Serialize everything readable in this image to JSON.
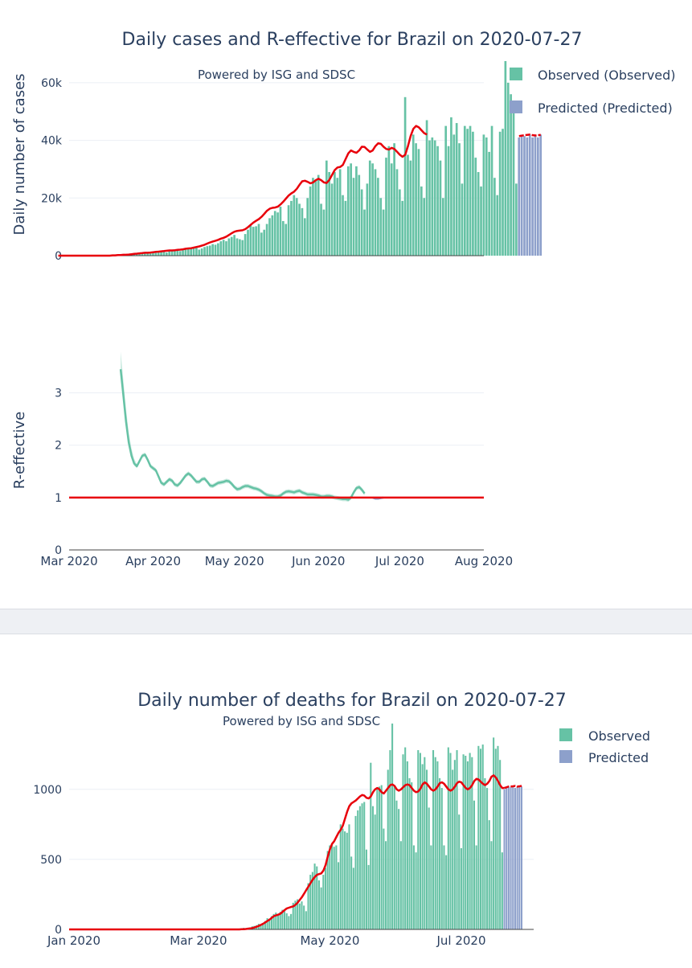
{
  "colors": {
    "observed": "#66c2a5",
    "predicted": "#8da0cb",
    "trend": "#e8000b",
    "reff": "#66c2a5",
    "grid": "#ebeff5"
  },
  "chart_data": [
    {
      "id": "cases",
      "type": "bar",
      "title": "Daily cases and R-effective for Brazil on 2020-07-27",
      "annotation": "Powered by ISG and SDSC",
      "ylabel": "Daily number of cases",
      "ylim": [
        0,
        70000
      ],
      "yticks": [
        0,
        20000,
        40000,
        60000
      ],
      "ytick_labels": [
        "0",
        "20k",
        "40k",
        "60k"
      ],
      "legend": [
        {
          "name": "Observed (Observed)",
          "color": "#66c2a5"
        },
        {
          "name": "Predicted (Predicted)",
          "color": "#8da0cb"
        }
      ],
      "start_date": "2020-02-26",
      "observed": [
        1,
        0,
        0,
        0,
        0,
        1,
        1,
        3,
        5,
        0,
        5,
        0,
        12,
        6,
        13,
        6,
        20,
        30,
        45,
        60,
        70,
        80,
        110,
        140,
        240,
        280,
        340,
        430,
        480,
        500,
        600,
        700,
        750,
        800,
        900,
        1000,
        1100,
        1200,
        1300,
        1500,
        1100,
        1700,
        2000,
        1800,
        2100,
        1600,
        1900,
        2200,
        2500,
        2800,
        2700,
        3000,
        2100,
        2500,
        3000,
        3300,
        3500,
        4000,
        3800,
        4300,
        5000,
        5500,
        5000,
        6000,
        6500,
        7200,
        6000,
        5700,
        5400,
        7500,
        9000,
        10500,
        10000,
        10200,
        11000,
        8000,
        9000,
        11000,
        13000,
        14000,
        15500,
        15000,
        17000,
        12000,
        11000,
        17500,
        19000,
        21000,
        20000,
        18000,
        16500,
        13000,
        20000,
        24000,
        27000,
        26000,
        28000,
        18000,
        16000,
        33000,
        29000,
        25000,
        29000,
        27000,
        30000,
        21000,
        19000,
        31000,
        32000,
        27000,
        31000,
        28000,
        23000,
        16000,
        25000,
        33000,
        32000,
        30000,
        27000,
        20000,
        16000,
        34000,
        38000,
        32000,
        39000,
        30000,
        23000,
        19000,
        55000,
        35000,
        33000,
        42000,
        39000,
        37000,
        24000,
        20000,
        47000,
        40000,
        41000,
        40000,
        38000,
        33000,
        20000,
        45000,
        38000,
        48000,
        42000,
        46000,
        39000,
        25000,
        45000,
        44000,
        45000,
        43000,
        34000,
        29000,
        24000,
        42000,
        41000,
        36000,
        45000,
        27000,
        21000,
        43000,
        44000,
        67500,
        60000,
        56000,
        52000,
        25000
      ],
      "predicted": [
        41000,
        42000,
        41500,
        41000,
        42000,
        41000,
        41500,
        41000,
        42000
      ],
      "trend": [
        0,
        0,
        0,
        0,
        0,
        0,
        0,
        0,
        0,
        0,
        0,
        0,
        0,
        0,
        0,
        0,
        0,
        0,
        0,
        0,
        100,
        100,
        200,
        200,
        300,
        300,
        400,
        500,
        600,
        700,
        800,
        900,
        1000,
        1000,
        1100,
        1200,
        1300,
        1400,
        1500,
        1600,
        1700,
        1800,
        1800,
        1900,
        2000,
        2100,
        2200,
        2400,
        2500,
        2600,
        2800,
        3000,
        3200,
        3500,
        3800,
        4200,
        4600,
        4900,
        5200,
        5500,
        5900,
        6200,
        6600,
        7200,
        7800,
        8300,
        8600,
        8700,
        8800,
        9200,
        9900,
        10700,
        11500,
        12100,
        12700,
        13500,
        14500,
        15600,
        16300,
        16600,
        16700,
        17000,
        17800,
        18700,
        19800,
        20900,
        21600,
        22200,
        23200,
        24600,
        25800,
        26000,
        25600,
        25100,
        25400,
        26200,
        26700,
        26200,
        25400,
        25200,
        26300,
        28000,
        29700,
        30600,
        30800,
        31500,
        33500,
        35500,
        36500,
        36000,
        35700,
        36500,
        37800,
        37700,
        36800,
        36000,
        36500,
        38000,
        39000,
        38800,
        37800,
        37000,
        36800,
        37400,
        37000,
        36000,
        35000,
        34300,
        35000,
        38000,
        41500,
        44000,
        45000,
        44500,
        43500,
        42500,
        42000
      ],
      "trend_predicted": [
        41500,
        41600,
        41800,
        41900,
        42000,
        41800,
        41700,
        41800,
        41900
      ]
    },
    {
      "id": "reff",
      "type": "line",
      "ylabel": "R-effective",
      "ylim": [
        0,
        3.9
      ],
      "yticks": [
        0,
        1,
        2,
        3
      ],
      "ytick_labels": [
        "0",
        "1",
        "2",
        "3"
      ],
      "x_ticks": [
        "Mar 2020",
        "Apr 2020",
        "May 2020",
        "Jun 2020",
        "Jul 2020",
        "Aug 2020"
      ],
      "start_date": "2020-03-20",
      "values": [
        3.45,
        2.95,
        2.45,
        2.05,
        1.8,
        1.65,
        1.6,
        1.7,
        1.8,
        1.82,
        1.72,
        1.6,
        1.56,
        1.52,
        1.4,
        1.28,
        1.25,
        1.3,
        1.35,
        1.32,
        1.25,
        1.23,
        1.28,
        1.35,
        1.42,
        1.46,
        1.42,
        1.36,
        1.3,
        1.3,
        1.35,
        1.36,
        1.3,
        1.23,
        1.22,
        1.25,
        1.28,
        1.29,
        1.3,
        1.32,
        1.31,
        1.26,
        1.2,
        1.16,
        1.17,
        1.2,
        1.22,
        1.22,
        1.2,
        1.18,
        1.17,
        1.15,
        1.12,
        1.08,
        1.05,
        1.04,
        1.03,
        1.02,
        1.02,
        1.04,
        1.08,
        1.11,
        1.12,
        1.11,
        1.1,
        1.12,
        1.13,
        1.1,
        1.08,
        1.06,
        1.06,
        1.06,
        1.05,
        1.04,
        1.02,
        1.02,
        1.03,
        1.03,
        1.02,
        1.0,
        0.99,
        0.98,
        0.97,
        0.97,
        0.96,
        1.0,
        1.1,
        1.18,
        1.2,
        1.15,
        1.08
      ],
      "predicted": [
        1.0,
        0.98,
        0.98,
        0.99,
        1.0
      ],
      "reference_line": 1
    },
    {
      "id": "deaths",
      "type": "bar",
      "title": "Daily number of deaths for Brazil on 2020-07-27",
      "annotation": "Powered by ISG and SDSC",
      "ylim": [
        0,
        1550
      ],
      "yticks": [
        0,
        500,
        1000
      ],
      "ytick_labels": [
        "0",
        "500",
        "1000"
      ],
      "x_ticks": [
        "Jan 2020",
        "Mar 2020",
        "May 2020",
        "Jul 2020"
      ],
      "legend": [
        {
          "name": "Observed",
          "color": "#66c2a5"
        },
        {
          "name": "Predicted",
          "color": "#8da0cb"
        }
      ],
      "start_date": "2020-03-17",
      "observed": [
        1,
        2,
        3,
        6,
        7,
        11,
        9,
        12,
        13,
        22,
        25,
        30,
        40,
        35,
        45,
        60,
        80,
        73,
        95,
        110,
        120,
        100,
        125,
        140,
        130,
        115,
        95,
        110,
        190,
        205,
        215,
        185,
        200,
        170,
        130,
        330,
        390,
        410,
        470,
        450,
        350,
        300,
        390,
        440,
        560,
        600,
        610,
        590,
        600,
        480,
        750,
        720,
        700,
        690,
        750,
        520,
        440,
        810,
        850,
        880,
        900,
        910,
        570,
        460,
        1190,
        880,
        820,
        1000,
        1020,
        1030,
        720,
        630,
        1140,
        1280,
        1470,
        1030,
        920,
        860,
        630,
        1250,
        1300,
        1200,
        1080,
        1050,
        600,
        550,
        1280,
        1260,
        1180,
        1230,
        1140,
        870,
        600,
        1280,
        1230,
        1200,
        1080,
        1010,
        600,
        530,
        1300,
        1260,
        1140,
        1210,
        1280,
        820,
        580,
        1250,
        1240,
        1200,
        1260,
        1230,
        920,
        600,
        1310,
        1290,
        1320,
        1080,
        1010,
        780,
        630,
        1370,
        1290,
        1310,
        1210,
        550
      ],
      "predicted": [
        1000,
        1010,
        1020,
        1015,
        1020,
        1010,
        1020,
        1015,
        1020
      ],
      "trend": [
        0,
        0,
        0,
        0,
        1,
        2,
        3,
        5,
        7,
        10,
        14,
        19,
        25,
        32,
        40,
        50,
        60,
        70,
        82,
        95,
        100,
        105,
        112,
        125,
        138,
        150,
        155,
        160,
        165,
        175,
        190,
        210,
        230,
        255,
        280,
        305,
        330,
        355,
        375,
        390,
        395,
        400,
        420,
        460,
        520,
        570,
        610,
        630,
        660,
        690,
        710,
        740,
        790,
        840,
        880,
        900,
        910,
        920,
        935,
        950,
        960,
        955,
        940,
        935,
        950,
        980,
        1000,
        1010,
        1000,
        980,
        970,
        990,
        1010,
        1030,
        1035,
        1025,
        1000,
        990,
        1000,
        1015,
        1030,
        1035,
        1030,
        1010,
        990,
        980,
        985,
        1005,
        1035,
        1050,
        1040,
        1020,
        1000,
        990,
        1000,
        1020,
        1045,
        1050,
        1040,
        1020,
        1000,
        990,
        1000,
        1020,
        1045,
        1055,
        1050,
        1030,
        1010,
        1000,
        1010,
        1030,
        1060,
        1075,
        1070,
        1055,
        1040,
        1030,
        1040,
        1060,
        1090,
        1100,
        1085,
        1060,
        1030,
        1010,
        1010
      ],
      "trend_predicted": [
        1010,
        1015,
        1020,
        1020,
        1022,
        1025,
        1020,
        1022,
        1025
      ]
    }
  ]
}
